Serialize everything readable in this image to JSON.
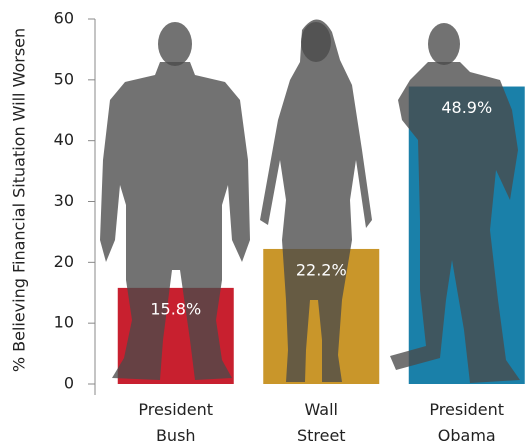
{
  "chart_data": {
    "type": "bar",
    "y_label": "% Believing  Financial Situation Will Worsen",
    "categories": [
      "President Bush",
      "Wall Street",
      "President Obama"
    ],
    "values": [
      15.8,
      22.2,
      48.9
    ],
    "value_labels": [
      "15.8%",
      "22.2%",
      "48.9%"
    ],
    "colors": [
      "#c8202f",
      "#c9962a",
      "#1a80a9"
    ],
    "ylim": [
      0,
      60
    ],
    "yticks": [
      0,
      10,
      20,
      30,
      40,
      50,
      60
    ]
  }
}
